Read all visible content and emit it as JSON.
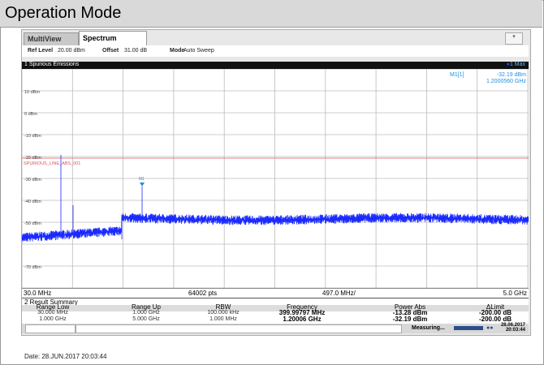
{
  "header": {
    "title": "Operation Mode"
  },
  "tabs": [
    "MultiView",
    "Spectrum"
  ],
  "settings": [
    {
      "label": "Ref Level",
      "value": "20.00 dBm"
    },
    {
      "label": "Offset",
      "value": "31.00 dB"
    },
    {
      "label": "Mode",
      "value": "Auto Sweep"
    }
  ],
  "window": {
    "title": "1 Spurious Emissions",
    "trace": "1 Max",
    "marker": {
      "name": "M1[1]",
      "level": "-32.19 dBm",
      "frequency": "1.2000560 GHz",
      "label": "M1"
    },
    "y_labels": [
      "10 dBm",
      "0 dBm",
      "-10 dBm",
      "-20 dBm",
      "-30 dBm",
      "-40 dBm",
      "-50 dBm",
      "-70 dBm"
    ],
    "limit_line": "SPURIOUS_LINE_ABS_001",
    "start": "30.0 MHz",
    "points": "64002 pts",
    "span": "497.0 MHz/",
    "stop": "5.0 GHz"
  },
  "results": {
    "title": "2 Result Summary",
    "columns": [
      "Range Low",
      "Range Up",
      "RBW",
      "Frequency",
      "Power Abs",
      "ΔLimit"
    ],
    "rows": [
      [
        "30.000 MHz",
        "1.000 GHz",
        "100.000 kHz",
        "399.99797 MHz",
        "-13.28 dBm",
        "-200.00 dB"
      ],
      [
        "1.000 GHz",
        "5.000 GHz",
        "1.000 MHz",
        "1.20006 GHz",
        "-32.19 dBm",
        "-200.00 dB"
      ]
    ]
  },
  "status": {
    "state": "Measuring...",
    "date": "28.06.2017",
    "time": "20:03:44"
  },
  "footer": "Date: 28.JUN.2017 20:03:44"
}
